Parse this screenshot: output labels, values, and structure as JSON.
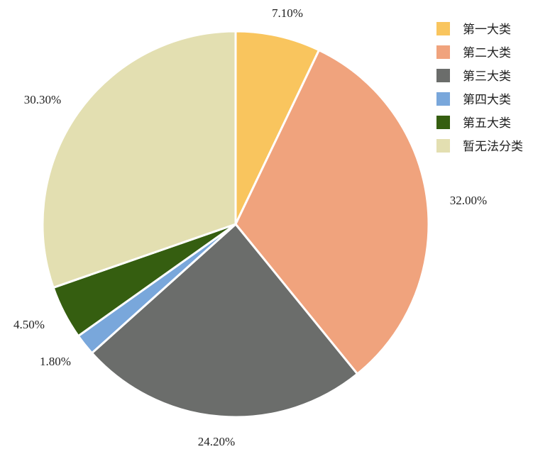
{
  "chart_data": {
    "type": "pie",
    "categories": [
      "第一大类",
      "第二大类",
      "第三大类",
      "第四大类",
      "第五大类",
      "暂无法分类"
    ],
    "values": [
      7.1,
      32.0,
      24.2,
      1.8,
      4.5,
      30.3
    ],
    "data_labels": [
      "7.10%",
      "32.00%",
      "24.20%",
      "1.80%",
      "4.50%",
      "30.30%"
    ],
    "colors": [
      "#F9C55E",
      "#F0A37D",
      "#6B6D6B",
      "#79A7DB",
      "#355E10",
      "#E3DFB1"
    ],
    "start_angle": "12 o'clock",
    "direction": "clockwise",
    "legend": "top-right"
  }
}
